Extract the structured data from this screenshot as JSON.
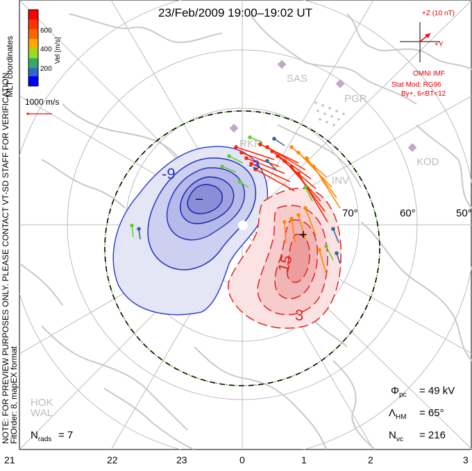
{
  "title": "23/Feb/2009  19:00–19:02  UT",
  "colorbar": {
    "ticks": [
      "600",
      "400",
      "200"
    ],
    "label": "Vel [m/s]",
    "colors": [
      "#0000ff",
      "#3355dd",
      "#339966",
      "#66cc33",
      "#aadd00",
      "#ffaa00",
      "#ff5500",
      "#ff0000"
    ]
  },
  "mlt_label": "MLT coordinates",
  "scale_vector": "1000 m/s",
  "side_note_line1": "NOTE: FOR PREVIEW PURPOSES ONLY. PLEASE CONTACT VT-SD STAFF FOR VERIFICATION.",
  "side_note_line2": "FitOrder: 8, mapEX format",
  "imf": {
    "z_label": "+Z (10 nT)",
    "y_label": "+Y",
    "source": "OMNI IMF",
    "model": "Stat Mod: RG96",
    "condition": "By+, 6<BT<12"
  },
  "stations": [
    "SAS",
    "PGR",
    "KOD",
    "RKN",
    "INV",
    "HOK",
    "WAL"
  ],
  "latitude_labels": [
    "70°",
    "60°",
    "50°"
  ],
  "contour_labels": [
    "-9",
    "-3",
    "15",
    "3"
  ],
  "extrema": {
    "min": "–",
    "max": "+"
  },
  "stats": {
    "phi_pc": "= 49 kV",
    "lambda_hm": "= 65°",
    "n_vc": "= 216",
    "n_rads": "= 7"
  },
  "mlt_ticks": [
    "21",
    "22",
    "23",
    "0",
    "1",
    "2",
    "3"
  ],
  "colors": {
    "negative": "#1a1aaa",
    "positive": "#dd2222",
    "coast": "#c8c8c8",
    "grid": "#bbbbbb"
  }
}
